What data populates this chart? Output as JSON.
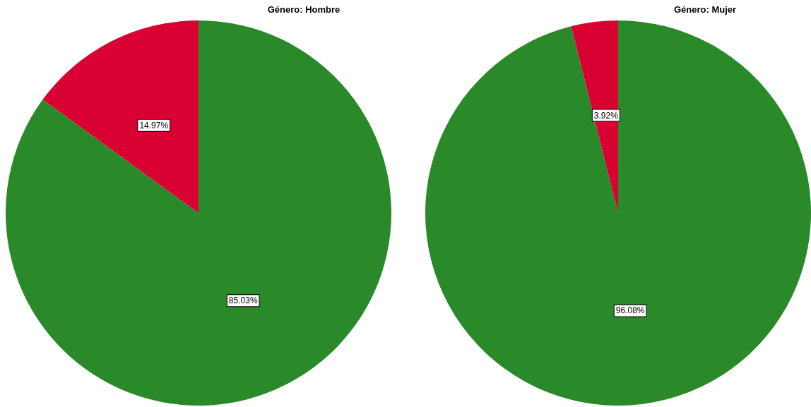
{
  "chart_data": [
    {
      "type": "pie",
      "title": "Género: Hombre",
      "categories": [
        null,
        null
      ],
      "values": [
        85.03,
        14.97
      ],
      "colors": [
        "#2a8a2a",
        "#d90032"
      ],
      "value_labels": [
        "85.03%",
        "14.97%"
      ]
    },
    {
      "type": "pie",
      "title": "Género: Mujer",
      "categories": [
        null,
        null
      ],
      "values": [
        96.08,
        3.92
      ],
      "colors": [
        "#2a8a2a",
        "#d90032"
      ],
      "value_labels": [
        "96.08%",
        "3.92%"
      ]
    }
  ]
}
